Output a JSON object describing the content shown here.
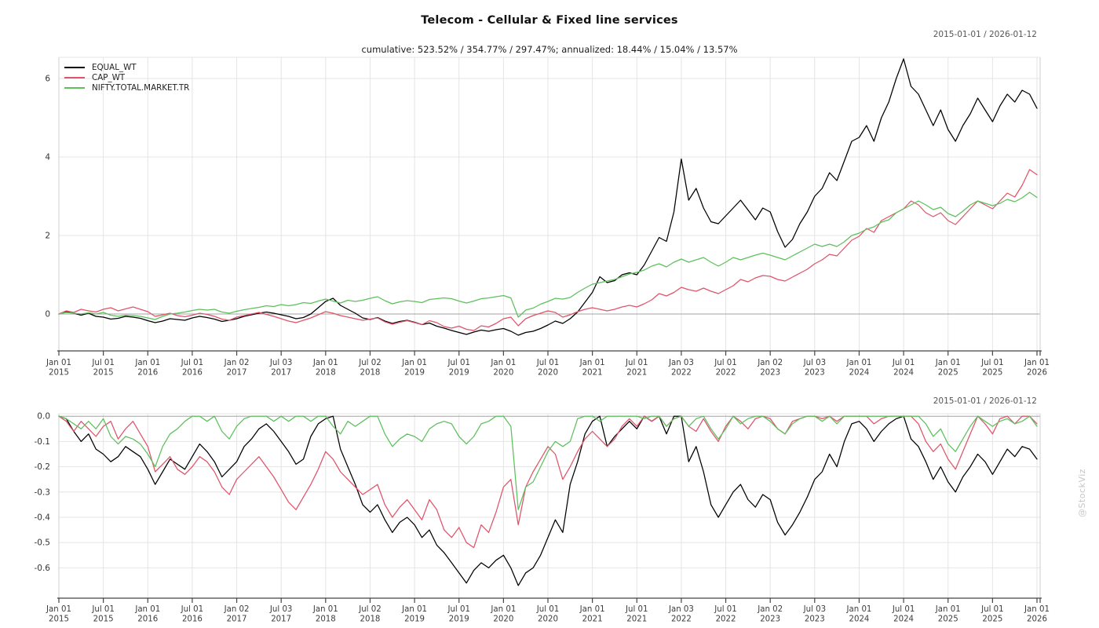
{
  "header": {
    "title": "Telecom - Cellular & Fixed line services",
    "subtitle": "cumulative: 523.52% / 354.77% / 297.47%; annualized: 18.44% / 15.04% / 13.57%",
    "range_top": "2015-01-01 / 2026-01-12",
    "range_bottom": "2015-01-01 / 2026-01-12"
  },
  "watermark": "@StockViz",
  "colors": {
    "equal_wt": "#000000",
    "cap_wt": "#e05369",
    "nifty": "#5dc05d",
    "grid": "#e4e4e4",
    "zero_line": "#a3a3a3",
    "axis_line": "#444444",
    "side_border": "#cfcfcf",
    "tick_label": "#3d3d3d",
    "y_label": "#333333"
  },
  "legend": {
    "items": [
      {
        "label": "EQUAL_WT",
        "color": "#000000"
      },
      {
        "label": "CAP_WT",
        "color": "#e05369"
      },
      {
        "label": "NIFTY.TOTAL.MARKET.TR",
        "color": "#5dc05d"
      }
    ]
  },
  "x_axis": {
    "t_max": 132,
    "ticks": [
      {
        "t": 0,
        "line1": "Jan 01",
        "line2": "2015"
      },
      {
        "t": 6,
        "line1": "Jul 01",
        "line2": "2015"
      },
      {
        "t": 12,
        "line1": "Jan 01",
        "line2": "2016"
      },
      {
        "t": 18,
        "line1": "Jul 01",
        "line2": "2016"
      },
      {
        "t": 24,
        "line1": "Jan 02",
        "line2": "2017"
      },
      {
        "t": 30,
        "line1": "Jul 03",
        "line2": "2017"
      },
      {
        "t": 36,
        "line1": "Jan 01",
        "line2": "2018"
      },
      {
        "t": 42,
        "line1": "Jul 02",
        "line2": "2018"
      },
      {
        "t": 48,
        "line1": "Jan 01",
        "line2": "2019"
      },
      {
        "t": 54,
        "line1": "Jul 01",
        "line2": "2019"
      },
      {
        "t": 60,
        "line1": "Jan 01",
        "line2": "2020"
      },
      {
        "t": 66,
        "line1": "Jul 01",
        "line2": "2020"
      },
      {
        "t": 72,
        "line1": "Jan 01",
        "line2": "2021"
      },
      {
        "t": 78,
        "line1": "Jul 01",
        "line2": "2021"
      },
      {
        "t": 84,
        "line1": "Jan 03",
        "line2": "2022"
      },
      {
        "t": 90,
        "line1": "Jul 01",
        "line2": "2022"
      },
      {
        "t": 96,
        "line1": "Jan 02",
        "line2": "2023"
      },
      {
        "t": 102,
        "line1": "Jul 03",
        "line2": "2023"
      },
      {
        "t": 108,
        "line1": "Jan 01",
        "line2": "2024"
      },
      {
        "t": 114,
        "line1": "Jul 01",
        "line2": "2024"
      },
      {
        "t": 120,
        "line1": "Jan 01",
        "line2": "2025"
      },
      {
        "t": 126,
        "line1": "Jul 01",
        "line2": "2025"
      },
      {
        "t": 132,
        "line1": "Jan 01",
        "line2": "2026"
      }
    ]
  },
  "chart_data": [
    {
      "type": "line",
      "name": "cumulative-returns",
      "x_unit": "months-since-2015-01",
      "ylim": [
        -0.94,
        6.54
      ],
      "yticks": [
        {
          "v": 0,
          "label": "0",
          "zero": true
        },
        {
          "v": 2,
          "label": "2"
        },
        {
          "v": 4,
          "label": "4"
        },
        {
          "v": 6,
          "label": "6"
        }
      ],
      "series": [
        {
          "name": "EQUAL_WT",
          "color": "#000000",
          "values": [
            0.0,
            0.06,
            0.02,
            -0.03,
            0.02,
            -0.06,
            -0.08,
            -0.13,
            -0.11,
            -0.06,
            -0.08,
            -0.11,
            -0.17,
            -0.22,
            -0.18,
            -0.12,
            -0.14,
            -0.16,
            -0.1,
            -0.06,
            -0.09,
            -0.13,
            -0.19,
            -0.16,
            -0.12,
            -0.06,
            -0.02,
            0.02,
            0.05,
            0.02,
            -0.02,
            -0.06,
            -0.12,
            -0.09,
            0.0,
            0.16,
            0.32,
            0.4,
            0.22,
            0.12,
            0.02,
            -0.1,
            -0.14,
            -0.09,
            -0.18,
            -0.24,
            -0.19,
            -0.16,
            -0.21,
            -0.27,
            -0.23,
            -0.31,
            -0.36,
            -0.42,
            -0.47,
            -0.52,
            -0.46,
            -0.41,
            -0.44,
            -0.4,
            -0.37,
            -0.44,
            -0.54,
            -0.47,
            -0.44,
            -0.37,
            -0.28,
            -0.18,
            -0.24,
            -0.12,
            0.05,
            0.3,
            0.55,
            0.95,
            0.8,
            0.85,
            1.0,
            1.05,
            1.0,
            1.25,
            1.6,
            1.95,
            1.85,
            2.6,
            3.95,
            2.9,
            3.2,
            2.7,
            2.35,
            2.3,
            2.5,
            2.7,
            2.9,
            2.65,
            2.4,
            2.7,
            2.6,
            2.1,
            1.7,
            1.9,
            2.3,
            2.6,
            3.0,
            3.2,
            3.6,
            3.4,
            3.9,
            4.4,
            4.5,
            4.8,
            4.4,
            5.0,
            5.4,
            6.0,
            6.5,
            5.8,
            5.6,
            5.2,
            4.8,
            5.2,
            4.7,
            4.4,
            4.8,
            5.1,
            5.5,
            5.2,
            4.9,
            5.3,
            5.6,
            5.4,
            5.7,
            5.6,
            5.24
          ]
        },
        {
          "name": "CAP_WT",
          "color": "#e05369",
          "values": [
            0.0,
            0.08,
            0.04,
            0.12,
            0.08,
            0.05,
            0.12,
            0.16,
            0.08,
            0.13,
            0.18,
            0.12,
            0.06,
            -0.06,
            -0.02,
            0.02,
            -0.04,
            -0.07,
            -0.03,
            0.02,
            -0.01,
            -0.06,
            -0.13,
            -0.16,
            -0.08,
            -0.04,
            0.0,
            0.04,
            -0.01,
            -0.06,
            -0.12,
            -0.18,
            -0.22,
            -0.16,
            -0.1,
            -0.02,
            0.06,
            0.02,
            -0.04,
            -0.08,
            -0.12,
            -0.16,
            -0.13,
            -0.1,
            -0.2,
            -0.26,
            -0.21,
            -0.17,
            -0.22,
            -0.27,
            -0.17,
            -0.22,
            -0.32,
            -0.36,
            -0.31,
            -0.39,
            -0.42,
            -0.3,
            -0.33,
            -0.24,
            -0.12,
            -0.08,
            -0.3,
            -0.12,
            -0.04,
            0.02,
            0.08,
            0.04,
            -0.08,
            -0.02,
            0.06,
            0.12,
            0.16,
            0.12,
            0.08,
            0.12,
            0.18,
            0.22,
            0.18,
            0.26,
            0.36,
            0.52,
            0.46,
            0.55,
            0.68,
            0.62,
            0.58,
            0.66,
            0.58,
            0.52,
            0.62,
            0.72,
            0.88,
            0.82,
            0.92,
            0.98,
            0.96,
            0.88,
            0.84,
            0.94,
            1.04,
            1.14,
            1.28,
            1.38,
            1.52,
            1.48,
            1.68,
            1.88,
            1.98,
            2.18,
            2.08,
            2.38,
            2.48,
            2.58,
            2.68,
            2.88,
            2.78,
            2.58,
            2.48,
            2.58,
            2.38,
            2.28,
            2.48,
            2.68,
            2.88,
            2.78,
            2.68,
            2.88,
            3.08,
            2.98,
            3.28,
            3.68,
            3.55
          ]
        },
        {
          "name": "NIFTY.TOTAL.MARKET.TR",
          "color": "#5dc05d",
          "values": [
            0.0,
            0.04,
            0.02,
            0.0,
            0.03,
            0.0,
            0.04,
            -0.03,
            -0.06,
            -0.03,
            -0.04,
            -0.06,
            -0.1,
            -0.14,
            -0.06,
            0.0,
            0.02,
            0.05,
            0.09,
            0.12,
            0.1,
            0.12,
            0.05,
            0.02,
            0.07,
            0.11,
            0.14,
            0.17,
            0.21,
            0.19,
            0.24,
            0.21,
            0.24,
            0.29,
            0.27,
            0.33,
            0.38,
            0.33,
            0.28,
            0.35,
            0.32,
            0.35,
            0.4,
            0.44,
            0.34,
            0.26,
            0.31,
            0.34,
            0.32,
            0.29,
            0.37,
            0.39,
            0.41,
            0.39,
            0.33,
            0.28,
            0.33,
            0.39,
            0.41,
            0.44,
            0.47,
            0.41,
            -0.08,
            0.1,
            0.15,
            0.25,
            0.32,
            0.4,
            0.38,
            0.42,
            0.55,
            0.66,
            0.76,
            0.8,
            0.84,
            0.88,
            0.95,
            1.02,
            1.06,
            1.12,
            1.22,
            1.28,
            1.2,
            1.32,
            1.4,
            1.32,
            1.38,
            1.44,
            1.32,
            1.22,
            1.32,
            1.44,
            1.38,
            1.44,
            1.5,
            1.55,
            1.5,
            1.44,
            1.38,
            1.48,
            1.58,
            1.68,
            1.78,
            1.72,
            1.78,
            1.72,
            1.84,
            2.0,
            2.06,
            2.16,
            2.22,
            2.34,
            2.4,
            2.58,
            2.68,
            2.78,
            2.88,
            2.78,
            2.66,
            2.72,
            2.56,
            2.48,
            2.62,
            2.78,
            2.88,
            2.82,
            2.76,
            2.82,
            2.92,
            2.86,
            2.96,
            3.1,
            2.97
          ]
        }
      ]
    },
    {
      "type": "line",
      "name": "drawdown",
      "x_unit": "months-since-2015-01",
      "ylim": [
        -0.72,
        0.01
      ],
      "yticks": [
        {
          "v": 0.0,
          "label": "0.0",
          "zero": true
        },
        {
          "v": -0.1,
          "label": "-0.1"
        },
        {
          "v": -0.2,
          "label": "-0.2"
        },
        {
          "v": -0.3,
          "label": "-0.3"
        },
        {
          "v": -0.4,
          "label": "-0.4"
        },
        {
          "v": -0.5,
          "label": "-0.5"
        },
        {
          "v": -0.6,
          "label": "-0.6"
        }
      ],
      "series": [
        {
          "name": "EQUAL_WT",
          "color": "#000000",
          "values": [
            0.0,
            -0.01,
            -0.06,
            -0.1,
            -0.07,
            -0.13,
            -0.15,
            -0.18,
            -0.16,
            -0.12,
            -0.14,
            -0.16,
            -0.21,
            -0.27,
            -0.22,
            -0.17,
            -0.19,
            -0.21,
            -0.16,
            -0.11,
            -0.14,
            -0.18,
            -0.24,
            -0.21,
            -0.18,
            -0.12,
            -0.09,
            -0.05,
            -0.03,
            -0.06,
            -0.1,
            -0.14,
            -0.19,
            -0.17,
            -0.08,
            -0.03,
            -0.01,
            0.0,
            -0.13,
            -0.2,
            -0.27,
            -0.35,
            -0.38,
            -0.35,
            -0.41,
            -0.46,
            -0.42,
            -0.4,
            -0.43,
            -0.48,
            -0.45,
            -0.51,
            -0.54,
            -0.58,
            -0.62,
            -0.66,
            -0.61,
            -0.58,
            -0.6,
            -0.57,
            -0.55,
            -0.6,
            -0.67,
            -0.62,
            -0.6,
            -0.55,
            -0.48,
            -0.41,
            -0.46,
            -0.27,
            -0.18,
            -0.07,
            -0.02,
            0.0,
            -0.12,
            -0.08,
            -0.05,
            -0.02,
            -0.05,
            0.0,
            -0.02,
            0.0,
            -0.07,
            0.0,
            0.0,
            -0.18,
            -0.12,
            -0.22,
            -0.35,
            -0.4,
            -0.35,
            -0.3,
            -0.27,
            -0.33,
            -0.36,
            -0.31,
            -0.33,
            -0.42,
            -0.47,
            -0.43,
            -0.38,
            -0.32,
            -0.25,
            -0.22,
            -0.15,
            -0.2,
            -0.1,
            -0.03,
            -0.02,
            -0.05,
            -0.1,
            -0.06,
            -0.03,
            -0.01,
            0.0,
            -0.09,
            -0.12,
            -0.18,
            -0.25,
            -0.2,
            -0.26,
            -0.3,
            -0.24,
            -0.2,
            -0.15,
            -0.18,
            -0.23,
            -0.18,
            -0.13,
            -0.16,
            -0.12,
            -0.13,
            -0.17
          ]
        },
        {
          "name": "CAP_WT",
          "color": "#e05369",
          "values": [
            0.0,
            -0.02,
            -0.06,
            -0.02,
            -0.05,
            -0.08,
            -0.04,
            -0.02,
            -0.09,
            -0.05,
            -0.02,
            -0.07,
            -0.12,
            -0.22,
            -0.19,
            -0.16,
            -0.21,
            -0.23,
            -0.2,
            -0.16,
            -0.18,
            -0.22,
            -0.28,
            -0.31,
            -0.25,
            -0.22,
            -0.19,
            -0.16,
            -0.2,
            -0.24,
            -0.29,
            -0.34,
            -0.37,
            -0.32,
            -0.27,
            -0.21,
            -0.14,
            -0.17,
            -0.22,
            -0.25,
            -0.28,
            -0.31,
            -0.29,
            -0.27,
            -0.35,
            -0.4,
            -0.36,
            -0.33,
            -0.37,
            -0.41,
            -0.33,
            -0.37,
            -0.45,
            -0.48,
            -0.44,
            -0.5,
            -0.52,
            -0.43,
            -0.46,
            -0.38,
            -0.28,
            -0.25,
            -0.43,
            -0.28,
            -0.22,
            -0.17,
            -0.12,
            -0.15,
            -0.25,
            -0.2,
            -0.14,
            -0.09,
            -0.06,
            -0.09,
            -0.12,
            -0.09,
            -0.04,
            -0.01,
            -0.04,
            0.0,
            -0.02,
            0.0,
            -0.04,
            -0.01,
            0.0,
            -0.04,
            -0.06,
            -0.01,
            -0.06,
            -0.1,
            -0.04,
            0.0,
            -0.02,
            -0.05,
            -0.01,
            0.0,
            -0.01,
            -0.05,
            -0.07,
            -0.02,
            -0.01,
            0.0,
            0.0,
            -0.01,
            0.0,
            -0.02,
            0.0,
            0.0,
            0.0,
            0.0,
            -0.03,
            -0.01,
            0.0,
            0.0,
            0.0,
            0.0,
            -0.03,
            -0.1,
            -0.14,
            -0.11,
            -0.17,
            -0.21,
            -0.14,
            -0.07,
            0.0,
            -0.03,
            -0.07,
            -0.01,
            0.0,
            -0.03,
            0.0,
            0.0,
            -0.03
          ]
        },
        {
          "name": "NIFTY.TOTAL.MARKET.TR",
          "color": "#5dc05d",
          "values": [
            0.0,
            -0.01,
            -0.03,
            -0.05,
            -0.02,
            -0.05,
            -0.01,
            -0.08,
            -0.11,
            -0.08,
            -0.09,
            -0.11,
            -0.15,
            -0.2,
            -0.12,
            -0.07,
            -0.05,
            -0.02,
            0.0,
            0.0,
            -0.02,
            0.0,
            -0.06,
            -0.09,
            -0.04,
            -0.01,
            0.0,
            0.0,
            0.0,
            -0.02,
            0.0,
            -0.02,
            0.0,
            0.0,
            -0.02,
            0.0,
            0.0,
            -0.04,
            -0.07,
            -0.02,
            -0.04,
            -0.02,
            0.0,
            0.0,
            -0.07,
            -0.12,
            -0.09,
            -0.07,
            -0.08,
            -0.1,
            -0.05,
            -0.03,
            -0.02,
            -0.03,
            -0.08,
            -0.11,
            -0.08,
            -0.03,
            -0.02,
            0.0,
            0.0,
            -0.04,
            -0.37,
            -0.28,
            -0.26,
            -0.2,
            -0.14,
            -0.1,
            -0.12,
            -0.1,
            -0.01,
            0.0,
            0.0,
            -0.02,
            0.0,
            0.0,
            0.0,
            0.0,
            0.0,
            -0.01,
            0.0,
            0.0,
            -0.04,
            -0.01,
            0.0,
            -0.04,
            -0.01,
            0.0,
            -0.05,
            -0.09,
            -0.05,
            0.0,
            -0.03,
            -0.01,
            0.0,
            0.0,
            -0.02,
            -0.05,
            -0.07,
            -0.03,
            -0.01,
            0.0,
            0.0,
            -0.02,
            0.0,
            -0.03,
            0.0,
            0.0,
            0.0,
            0.0,
            0.0,
            0.0,
            0.0,
            0.0,
            0.0,
            0.0,
            0.0,
            -0.03,
            -0.08,
            -0.05,
            -0.11,
            -0.14,
            -0.09,
            -0.04,
            0.0,
            -0.02,
            -0.04,
            -0.02,
            -0.01,
            -0.03,
            -0.02,
            0.0,
            -0.04
          ]
        }
      ]
    }
  ]
}
